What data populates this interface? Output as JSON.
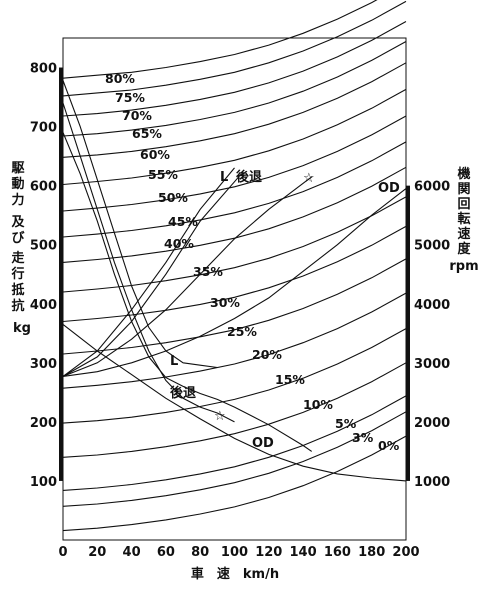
{
  "chart_data": {
    "type": "line",
    "xlabel": "車　速　km/h",
    "ylabel_left": [
      "駆動力",
      "及び",
      "走行抵抗",
      "kg"
    ],
    "ylabel_right": [
      "機関回転速度",
      "rpm"
    ],
    "xlim": [
      0,
      200
    ],
    "ylim_left": [
      0,
      850
    ],
    "ylim_right": [
      0,
      8500
    ],
    "x_ticks": [
      "0",
      "20",
      "40",
      "60",
      "80",
      "100",
      "120",
      "140",
      "160",
      "180",
      "200"
    ],
    "y_ticks_left": [
      "100",
      "200",
      "300",
      "400",
      "500",
      "600",
      "700",
      "800"
    ],
    "y_ticks_right": [
      "1000",
      "2000",
      "3000",
      "4000",
      "5000",
      "6000"
    ],
    "gradients": [
      {
        "label": "80%",
        "x": [
          0,
          20,
          40,
          60,
          80,
          100,
          120,
          140,
          160,
          180,
          200
        ],
        "y": [
          782,
          787,
          792,
          800,
          810,
          822,
          838,
          858,
          882,
          910,
          942
        ]
      },
      {
        "label": "75%",
        "x": [
          0,
          20,
          40,
          60,
          80,
          100,
          120,
          140,
          160,
          180,
          200
        ],
        "y": [
          752,
          757,
          762,
          770,
          780,
          792,
          808,
          828,
          852,
          880,
          912
        ]
      },
      {
        "label": "70%",
        "x": [
          0,
          20,
          40,
          60,
          80,
          100,
          120,
          140,
          160,
          180,
          200
        ],
        "y": [
          718,
          722,
          728,
          736,
          746,
          758,
          774,
          794,
          818,
          846,
          878
        ]
      },
      {
        "label": "65%",
        "x": [
          0,
          20,
          40,
          60,
          80,
          100,
          120,
          140,
          160,
          180,
          200
        ],
        "y": [
          684,
          688,
          694,
          702,
          712,
          724,
          740,
          760,
          784,
          812,
          844
        ]
      },
      {
        "label": "60%",
        "x": [
          0,
          20,
          40,
          60,
          80,
          100,
          120,
          140,
          160,
          180,
          200
        ],
        "y": [
          648,
          652,
          658,
          666,
          676,
          688,
          704,
          724,
          748,
          776,
          808
        ]
      },
      {
        "label": "55%",
        "x": [
          0,
          20,
          40,
          60,
          80,
          100,
          120,
          140,
          160,
          180,
          200
        ],
        "y": [
          602,
          607,
          613,
          621,
          631,
          643,
          659,
          679,
          703,
          731,
          763
        ]
      },
      {
        "label": "50%",
        "x": [
          0,
          20,
          40,
          60,
          80,
          100,
          120,
          140,
          160,
          180,
          200
        ],
        "y": [
          557,
          562,
          568,
          576,
          586,
          598,
          614,
          634,
          658,
          686,
          718
        ]
      },
      {
        "label": "45%",
        "x": [
          0,
          20,
          40,
          60,
          80,
          100,
          120,
          140,
          160,
          180,
          200
        ],
        "y": [
          513,
          518,
          524,
          532,
          542,
          554,
          570,
          590,
          614,
          642,
          674
        ]
      },
      {
        "label": "40%",
        "x": [
          0,
          20,
          40,
          60,
          80,
          100,
          120,
          140,
          160,
          180,
          200
        ],
        "y": [
          470,
          475,
          481,
          489,
          499,
          511,
          527,
          547,
          571,
          599,
          631
        ]
      },
      {
        "label": "35%",
        "x": [
          0,
          20,
          40,
          60,
          80,
          100,
          120,
          140,
          160,
          180,
          200
        ],
        "y": [
          420,
          425,
          431,
          439,
          449,
          461,
          477,
          497,
          521,
          549,
          581
        ]
      },
      {
        "label": "30%",
        "x": [
          0,
          20,
          40,
          60,
          80,
          100,
          120,
          140,
          160,
          180,
          200
        ],
        "y": [
          370,
          375,
          381,
          389,
          399,
          411,
          427,
          447,
          471,
          499,
          531
        ]
      },
      {
        "label": "25%",
        "x": [
          0,
          20,
          40,
          60,
          80,
          100,
          120,
          140,
          160,
          180,
          200
        ],
        "y": [
          315,
          320,
          326,
          334,
          344,
          356,
          372,
          392,
          416,
          444,
          476
        ]
      },
      {
        "label": "20%",
        "x": [
          0,
          20,
          40,
          60,
          80,
          100,
          120,
          140,
          160,
          180,
          200
        ],
        "y": [
          257,
          262,
          268,
          276,
          286,
          298,
          314,
          334,
          358,
          386,
          418
        ]
      },
      {
        "label": "15%",
        "x": [
          0,
          20,
          40,
          60,
          80,
          100,
          120,
          140,
          160,
          180,
          200
        ],
        "y": [
          198,
          202,
          208,
          216,
          226,
          238,
          254,
          274,
          298,
          326,
          358
        ]
      },
      {
        "label": "10%",
        "x": [
          0,
          20,
          40,
          60,
          80,
          100,
          120,
          140,
          160,
          180,
          200
        ],
        "y": [
          140,
          144,
          150,
          158,
          168,
          180,
          196,
          216,
          240,
          268,
          300
        ]
      },
      {
        "label": "5%",
        "x": [
          0,
          20,
          40,
          60,
          80,
          100,
          120,
          140,
          160,
          180,
          200
        ],
        "y": [
          84,
          88,
          94,
          102,
          112,
          124,
          140,
          160,
          184,
          212,
          244
        ]
      },
      {
        "label": "3%",
        "x": [
          0,
          20,
          40,
          60,
          80,
          100,
          120,
          140,
          160,
          180,
          200
        ],
        "y": [
          57,
          61,
          67,
          75,
          85,
          97,
          113,
          133,
          157,
          185,
          217
        ]
      },
      {
        "label": "0%",
        "x": [
          0,
          20,
          40,
          60,
          80,
          100,
          120,
          140,
          160,
          180,
          200
        ],
        "y": [
          16,
          20,
          26,
          34,
          44,
          56,
          72,
          92,
          116,
          144,
          176
        ]
      }
    ],
    "traction": [
      {
        "label": "L",
        "x": [
          0,
          10,
          20,
          30,
          40,
          50,
          60,
          70,
          80,
          90
        ],
        "y": [
          778,
          700,
          610,
          520,
          430,
          360,
          320,
          300,
          296,
          292
        ]
      },
      {
        "label": "後退",
        "x": [
          0,
          10,
          20,
          30,
          40,
          50,
          60,
          70,
          80,
          90,
          100
        ],
        "y": [
          740,
          650,
          560,
          470,
          390,
          320,
          270,
          240,
          225,
          215,
          200
        ]
      },
      {
        "label": "☆",
        "x": [
          0,
          10,
          20,
          30,
          40,
          50,
          60,
          70,
          80,
          90,
          100,
          120,
          140,
          145
        ],
        "y": [
          690,
          620,
          540,
          450,
          370,
          310,
          275,
          260,
          248,
          238,
          225,
          195,
          160,
          150
        ]
      },
      {
        "label": "OD",
        "x": [
          0,
          20,
          40,
          60,
          80,
          100,
          120,
          140,
          160,
          180,
          200
        ],
        "y": [
          365,
          320,
          280,
          240,
          205,
          172,
          145,
          125,
          112,
          105,
          100
        ]
      }
    ],
    "engine_speed": [
      {
        "label": "L",
        "x": [
          0,
          20,
          40,
          60,
          80,
          100
        ],
        "y_rpm": [
          2770,
          3200,
          3900,
          4700,
          5600,
          6300
        ]
      },
      {
        "label": "後退",
        "x": [
          0,
          20,
          40,
          60,
          80,
          104
        ],
        "y_rpm": [
          2770,
          3100,
          3700,
          4500,
          5400,
          6200
        ]
      },
      {
        "label": "☆",
        "x": [
          0,
          20,
          40,
          60,
          80,
          100,
          120,
          145
        ],
        "y_rpm": [
          2770,
          3000,
          3400,
          3900,
          4500,
          5100,
          5600,
          6150
        ]
      },
      {
        "label": "OD",
        "x": [
          0,
          20,
          40,
          60,
          80,
          100,
          120,
          140,
          160,
          180,
          200
        ],
        "y_rpm": [
          2770,
          2850,
          3000,
          3200,
          3450,
          3750,
          4100,
          4550,
          5000,
          5500,
          5950
        ]
      }
    ],
    "annotations": {
      "L_top": "L",
      "reverse_top": "後退",
      "star_top": "☆",
      "od_top": "OD",
      "L_mid": "L",
      "reverse_mid": "後退",
      "star_mid": "☆",
      "od_mid": "OD"
    }
  }
}
